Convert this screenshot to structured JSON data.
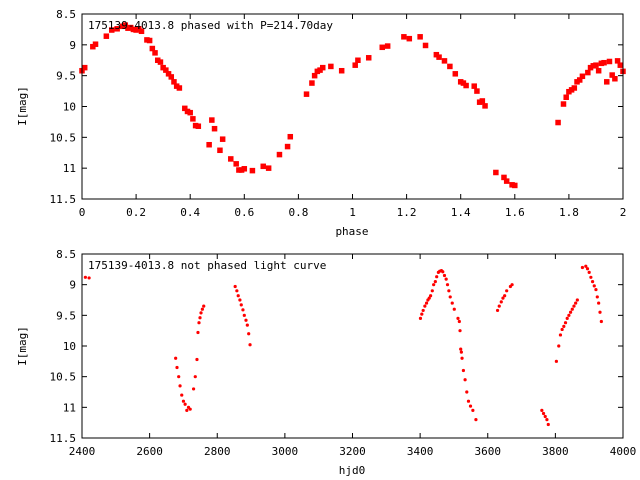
{
  "colors": {
    "points": "#ff0000",
    "axes": "#000000",
    "background": "#ffffff"
  },
  "chart_data": [
    {
      "type": "scatter",
      "title": "175139-4013.8 phased with P=214.70day",
      "xlabel": "phase",
      "ylabel": "I[mag]",
      "xlim": [
        0,
        2
      ],
      "ylim": [
        11.5,
        8.5
      ],
      "y_inverted": true,
      "grid": false,
      "xticks": [
        "0",
        "0.2",
        "0.4",
        "0.6",
        "0.8",
        "1",
        "1.2",
        "1.4",
        "1.6",
        "1.8",
        "2"
      ],
      "xtick_values": [
        0,
        0.2,
        0.4,
        0.6,
        0.8,
        1.0,
        1.2,
        1.4,
        1.6,
        1.8,
        2.0
      ],
      "yticks": [
        "8.5",
        "9",
        "9.5",
        "10",
        "10.5",
        "11",
        "11.5"
      ],
      "ytick_values": [
        8.5,
        9,
        9.5,
        10,
        10.5,
        11,
        11.5
      ],
      "marker": "filled-square",
      "series": [
        {
          "x": [
            0.0,
            0.01,
            0.04,
            0.05,
            0.09,
            0.11,
            0.13,
            0.15,
            0.16,
            0.17,
            0.18,
            0.19,
            0.2,
            0.21,
            0.22,
            0.24,
            0.25,
            0.26,
            0.27,
            0.28,
            0.29,
            0.3,
            0.31,
            0.32,
            0.33,
            0.34,
            0.35,
            0.36,
            0.38,
            0.39,
            0.4,
            0.41,
            0.42,
            0.43,
            0.47,
            0.48,
            0.49,
            0.51,
            0.52,
            0.55,
            0.57,
            0.58,
            0.59,
            0.6,
            0.63,
            0.67,
            0.69,
            0.73,
            0.76,
            0.77,
            0.83,
            0.85,
            0.86,
            0.87,
            0.88,
            0.89,
            0.92,
            0.96,
            1.01,
            1.02,
            1.06,
            1.11,
            1.13,
            1.19,
            1.21,
            1.25,
            1.27,
            1.31,
            1.32,
            1.34,
            1.36,
            1.38,
            1.4,
            1.41,
            1.42,
            1.45,
            1.46,
            1.47,
            1.48,
            1.49,
            1.53,
            1.56,
            1.57,
            1.59,
            1.6,
            1.76,
            1.78,
            1.79,
            1.8,
            1.81,
            1.82,
            1.83,
            1.84,
            1.85,
            1.87,
            1.88,
            1.89,
            1.9,
            1.91,
            1.92,
            1.93,
            1.94,
            1.95,
            1.96,
            1.97,
            1.98,
            1.99,
            2.0
          ],
          "y": [
            9.42,
            9.37,
            9.03,
            8.99,
            8.86,
            8.76,
            8.74,
            8.7,
            8.68,
            8.73,
            8.72,
            8.75,
            8.76,
            8.74,
            8.78,
            8.92,
            8.93,
            9.06,
            9.13,
            9.25,
            9.28,
            9.37,
            9.41,
            9.47,
            9.52,
            9.6,
            9.67,
            9.7,
            10.03,
            10.08,
            10.1,
            10.2,
            10.31,
            10.32,
            10.62,
            10.22,
            10.36,
            10.71,
            10.53,
            10.85,
            10.93,
            11.03,
            11.03,
            11.01,
            11.04,
            10.97,
            11.0,
            10.78,
            10.65,
            10.49,
            9.8,
            9.62,
            9.5,
            9.43,
            9.41,
            9.37,
            9.35,
            9.42,
            9.33,
            9.25,
            9.21,
            9.04,
            9.02,
            8.87,
            8.9,
            8.87,
            9.01,
            9.16,
            9.2,
            9.26,
            9.35,
            9.47,
            9.6,
            9.62,
            9.66,
            9.67,
            9.75,
            9.93,
            9.91,
            9.99,
            11.07,
            11.15,
            11.21,
            11.27,
            11.28,
            10.26,
            9.96,
            9.85,
            9.76,
            9.73,
            9.7,
            9.6,
            9.57,
            9.51,
            9.45,
            9.37,
            9.34,
            9.33,
            9.42,
            9.3,
            9.29,
            9.6,
            9.27,
            9.49,
            9.55,
            9.26,
            9.33,
            9.43
          ]
        }
      ]
    },
    {
      "type": "scatter",
      "title": "175139-4013.8 not phased light curve",
      "xlabel": "hjd0",
      "ylabel": "I[mag]",
      "xlim": [
        2400,
        4000
      ],
      "ylim": [
        11.5,
        8.5
      ],
      "y_inverted": true,
      "grid": false,
      "xticks": [
        "2400",
        "2600",
        "2800",
        "3000",
        "3200",
        "3400",
        "3600",
        "3800",
        "4000"
      ],
      "xtick_values": [
        2400,
        2600,
        2800,
        3000,
        3200,
        3400,
        3600,
        3800,
        4000
      ],
      "yticks": [
        "8.5",
        "9",
        "9.5",
        "10",
        "10.5",
        "11",
        "11.5"
      ],
      "ytick_values": [
        8.5,
        9,
        9.5,
        10,
        10.5,
        11,
        11.5
      ],
      "marker": "small-dot",
      "series": [
        {
          "x": [
            2410,
            2421,
            2677,
            2681,
            2686,
            2690,
            2695,
            2700,
            2705,
            2710,
            2715,
            2720,
            2730,
            2735,
            2740,
            2743,
            2746,
            2749,
            2752,
            2756,
            2760,
            2853,
            2858,
            2862,
            2867,
            2871,
            2876,
            2880,
            2885,
            2889,
            2893,
            2897,
            3401,
            3405,
            3409,
            3414,
            3419,
            3423,
            3427,
            3431,
            3436,
            3440,
            3445,
            3449,
            3454,
            3458,
            3463,
            3467,
            3472,
            3477,
            3481,
            3485,
            3489,
            3495,
            3501,
            3512,
            3516,
            3518,
            3520,
            3522,
            3524,
            3528,
            3533,
            3538,
            3543,
            3549,
            3556,
            3565,
            3629,
            3634,
            3640,
            3645,
            3650,
            3656,
            3667,
            3672,
            3760,
            3765,
            3770,
            3775,
            3779,
            3803,
            3810,
            3815,
            3820,
            3825,
            3830,
            3835,
            3840,
            3845,
            3850,
            3855,
            3860,
            3865,
            3880,
            3890,
            3895,
            3900,
            3905,
            3910,
            3915,
            3920,
            3924,
            3928,
            3932,
            3936
          ],
          "y": [
            8.88,
            8.89,
            10.2,
            10.35,
            10.5,
            10.65,
            10.8,
            10.9,
            10.95,
            11.05,
            11.0,
            11.03,
            10.7,
            10.5,
            10.22,
            9.78,
            9.62,
            9.54,
            9.46,
            9.4,
            9.35,
            9.03,
            9.1,
            9.18,
            9.25,
            9.33,
            9.41,
            9.5,
            9.58,
            9.66,
            9.8,
            9.98,
            9.55,
            9.48,
            9.42,
            9.35,
            9.3,
            9.25,
            9.22,
            9.18,
            9.1,
            9.0,
            8.95,
            8.87,
            8.8,
            8.78,
            8.77,
            8.79,
            8.85,
            8.91,
            9.0,
            9.1,
            9.2,
            9.3,
            9.4,
            9.55,
            9.6,
            9.75,
            10.05,
            10.1,
            10.2,
            10.4,
            10.55,
            10.75,
            10.9,
            10.98,
            11.05,
            11.2,
            9.42,
            9.35,
            9.28,
            9.22,
            9.18,
            9.1,
            9.03,
            9.0,
            11.05,
            11.1,
            11.15,
            11.2,
            11.28,
            10.25,
            10.0,
            9.82,
            9.73,
            9.68,
            9.62,
            9.55,
            9.5,
            9.45,
            9.4,
            9.35,
            9.3,
            9.25,
            8.72,
            8.7,
            8.74,
            8.8,
            8.88,
            8.95,
            9.02,
            9.08,
            9.2,
            9.3,
            9.45,
            9.6
          ]
        }
      ]
    }
  ]
}
